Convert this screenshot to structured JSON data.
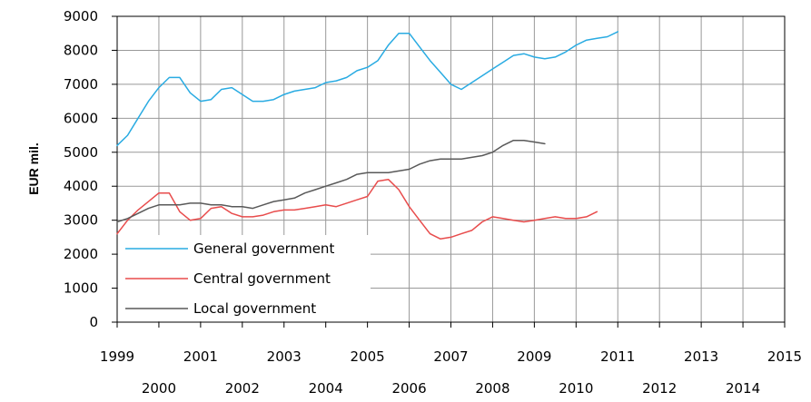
{
  "chart_data": {
    "type": "line",
    "title": "",
    "xlabel": "",
    "ylabel": "EUR mil.",
    "xlim": [
      1999,
      2015
    ],
    "ylim": [
      0,
      9000
    ],
    "x_ticks": [
      "1999",
      "2000",
      "2001",
      "2002",
      "2003",
      "2004",
      "2005",
      "2006",
      "2007",
      "2008",
      "2009",
      "2010",
      "2011",
      "2012",
      "2013",
      "2014",
      "2015"
    ],
    "y_ticks": [
      "0",
      "1000",
      "2000",
      "3000",
      "4000",
      "5000",
      "6000",
      "7000",
      "8000",
      "9000"
    ],
    "grid": true,
    "legend": "bottom-left",
    "series": [
      {
        "name": "General government",
        "color": "#29abe2",
        "points": [
          [
            1999.0,
            5200
          ],
          [
            1999.25,
            5500
          ],
          [
            1999.5,
            6000
          ],
          [
            1999.75,
            6500
          ],
          [
            2000.0,
            6900
          ],
          [
            2000.25,
            7200
          ],
          [
            2000.5,
            7200
          ],
          [
            2000.75,
            6750
          ],
          [
            2001.0,
            6500
          ],
          [
            2001.25,
            6550
          ],
          [
            2001.5,
            6850
          ],
          [
            2001.75,
            6900
          ],
          [
            2002.0,
            6700
          ],
          [
            2002.25,
            6500
          ],
          [
            2002.5,
            6500
          ],
          [
            2002.75,
            6550
          ],
          [
            2003.0,
            6700
          ],
          [
            2003.25,
            6800
          ],
          [
            2003.5,
            6850
          ],
          [
            2003.75,
            6900
          ],
          [
            2004.0,
            7050
          ],
          [
            2004.25,
            7100
          ],
          [
            2004.5,
            7200
          ],
          [
            2004.75,
            7400
          ],
          [
            2005.0,
            7500
          ],
          [
            2005.25,
            7700
          ],
          [
            2005.5,
            8150
          ],
          [
            2005.75,
            8500
          ],
          [
            2006.0,
            8500
          ],
          [
            2006.25,
            8100
          ],
          [
            2006.5,
            7700
          ],
          [
            2006.75,
            7350
          ],
          [
            2007.0,
            7000
          ],
          [
            2007.25,
            6850
          ],
          [
            2007.5,
            7050
          ],
          [
            2007.75,
            7250
          ],
          [
            2008.0,
            7450
          ],
          [
            2008.25,
            7650
          ],
          [
            2008.5,
            7850
          ],
          [
            2008.75,
            7900
          ],
          [
            2009.0,
            7800
          ],
          [
            2009.25,
            7750
          ],
          [
            2009.5,
            7800
          ],
          [
            2009.75,
            7950
          ],
          [
            2010.0,
            8150
          ],
          [
            2010.25,
            8300
          ],
          [
            2010.5,
            8350
          ],
          [
            2010.75,
            8400
          ],
          [
            2011.0,
            8550
          ]
        ]
      },
      {
        "name": "Central government",
        "color": "#e84c4c",
        "points": [
          [
            1999.0,
            2600
          ],
          [
            1999.25,
            3000
          ],
          [
            1999.5,
            3300
          ],
          [
            1999.75,
            3550
          ],
          [
            2000.0,
            3800
          ],
          [
            2000.25,
            3800
          ],
          [
            2000.5,
            3250
          ],
          [
            2000.75,
            3000
          ],
          [
            2001.0,
            3050
          ],
          [
            2001.25,
            3350
          ],
          [
            2001.5,
            3400
          ],
          [
            2001.75,
            3200
          ],
          [
            2002.0,
            3100
          ],
          [
            2002.25,
            3100
          ],
          [
            2002.5,
            3150
          ],
          [
            2002.75,
            3250
          ],
          [
            2003.0,
            3300
          ],
          [
            2003.25,
            3300
          ],
          [
            2003.5,
            3350
          ],
          [
            2003.75,
            3400
          ],
          [
            2004.0,
            3450
          ],
          [
            2004.25,
            3400
          ],
          [
            2004.5,
            3500
          ],
          [
            2004.75,
            3600
          ],
          [
            2005.0,
            3700
          ],
          [
            2005.25,
            4150
          ],
          [
            2005.5,
            4200
          ],
          [
            2005.75,
            3900
          ],
          [
            2006.0,
            3400
          ],
          [
            2006.25,
            3000
          ],
          [
            2006.5,
            2600
          ],
          [
            2006.75,
            2450
          ],
          [
            2007.0,
            2500
          ],
          [
            2007.25,
            2600
          ],
          [
            2007.5,
            2700
          ],
          [
            2007.75,
            2950
          ],
          [
            2008.0,
            3100
          ],
          [
            2008.25,
            3050
          ],
          [
            2008.5,
            3000
          ],
          [
            2008.75,
            2950
          ],
          [
            2009.0,
            3000
          ],
          [
            2009.25,
            3050
          ],
          [
            2009.5,
            3100
          ],
          [
            2009.75,
            3050
          ],
          [
            2010.0,
            3050
          ],
          [
            2010.25,
            3100
          ],
          [
            2010.5,
            3250
          ]
        ]
      },
      {
        "name": "Local government",
        "color": "#595959",
        "points": [
          [
            1999.0,
            2950
          ],
          [
            1999.25,
            3050
          ],
          [
            1999.5,
            3200
          ],
          [
            1999.75,
            3350
          ],
          [
            2000.0,
            3450
          ],
          [
            2000.25,
            3450
          ],
          [
            2000.5,
            3450
          ],
          [
            2000.75,
            3500
          ],
          [
            2001.0,
            3500
          ],
          [
            2001.25,
            3450
          ],
          [
            2001.5,
            3450
          ],
          [
            2001.75,
            3400
          ],
          [
            2002.0,
            3400
          ],
          [
            2002.25,
            3350
          ],
          [
            2002.5,
            3450
          ],
          [
            2002.75,
            3550
          ],
          [
            2003.0,
            3600
          ],
          [
            2003.25,
            3650
          ],
          [
            2003.5,
            3800
          ],
          [
            2003.75,
            3900
          ],
          [
            2004.0,
            4000
          ],
          [
            2004.25,
            4100
          ],
          [
            2004.5,
            4200
          ],
          [
            2004.75,
            4350
          ],
          [
            2005.0,
            4400
          ],
          [
            2005.25,
            4400
          ],
          [
            2005.5,
            4400
          ],
          [
            2005.75,
            4450
          ],
          [
            2006.0,
            4500
          ],
          [
            2006.25,
            4650
          ],
          [
            2006.5,
            4750
          ],
          [
            2006.75,
            4800
          ],
          [
            2007.0,
            4800
          ],
          [
            2007.25,
            4800
          ],
          [
            2007.5,
            4850
          ],
          [
            2007.75,
            4900
          ],
          [
            2008.0,
            5000
          ],
          [
            2008.25,
            5200
          ],
          [
            2008.5,
            5350
          ],
          [
            2008.75,
            5350
          ],
          [
            2009.0,
            5300
          ],
          [
            2009.25,
            5250
          ]
        ]
      }
    ]
  }
}
